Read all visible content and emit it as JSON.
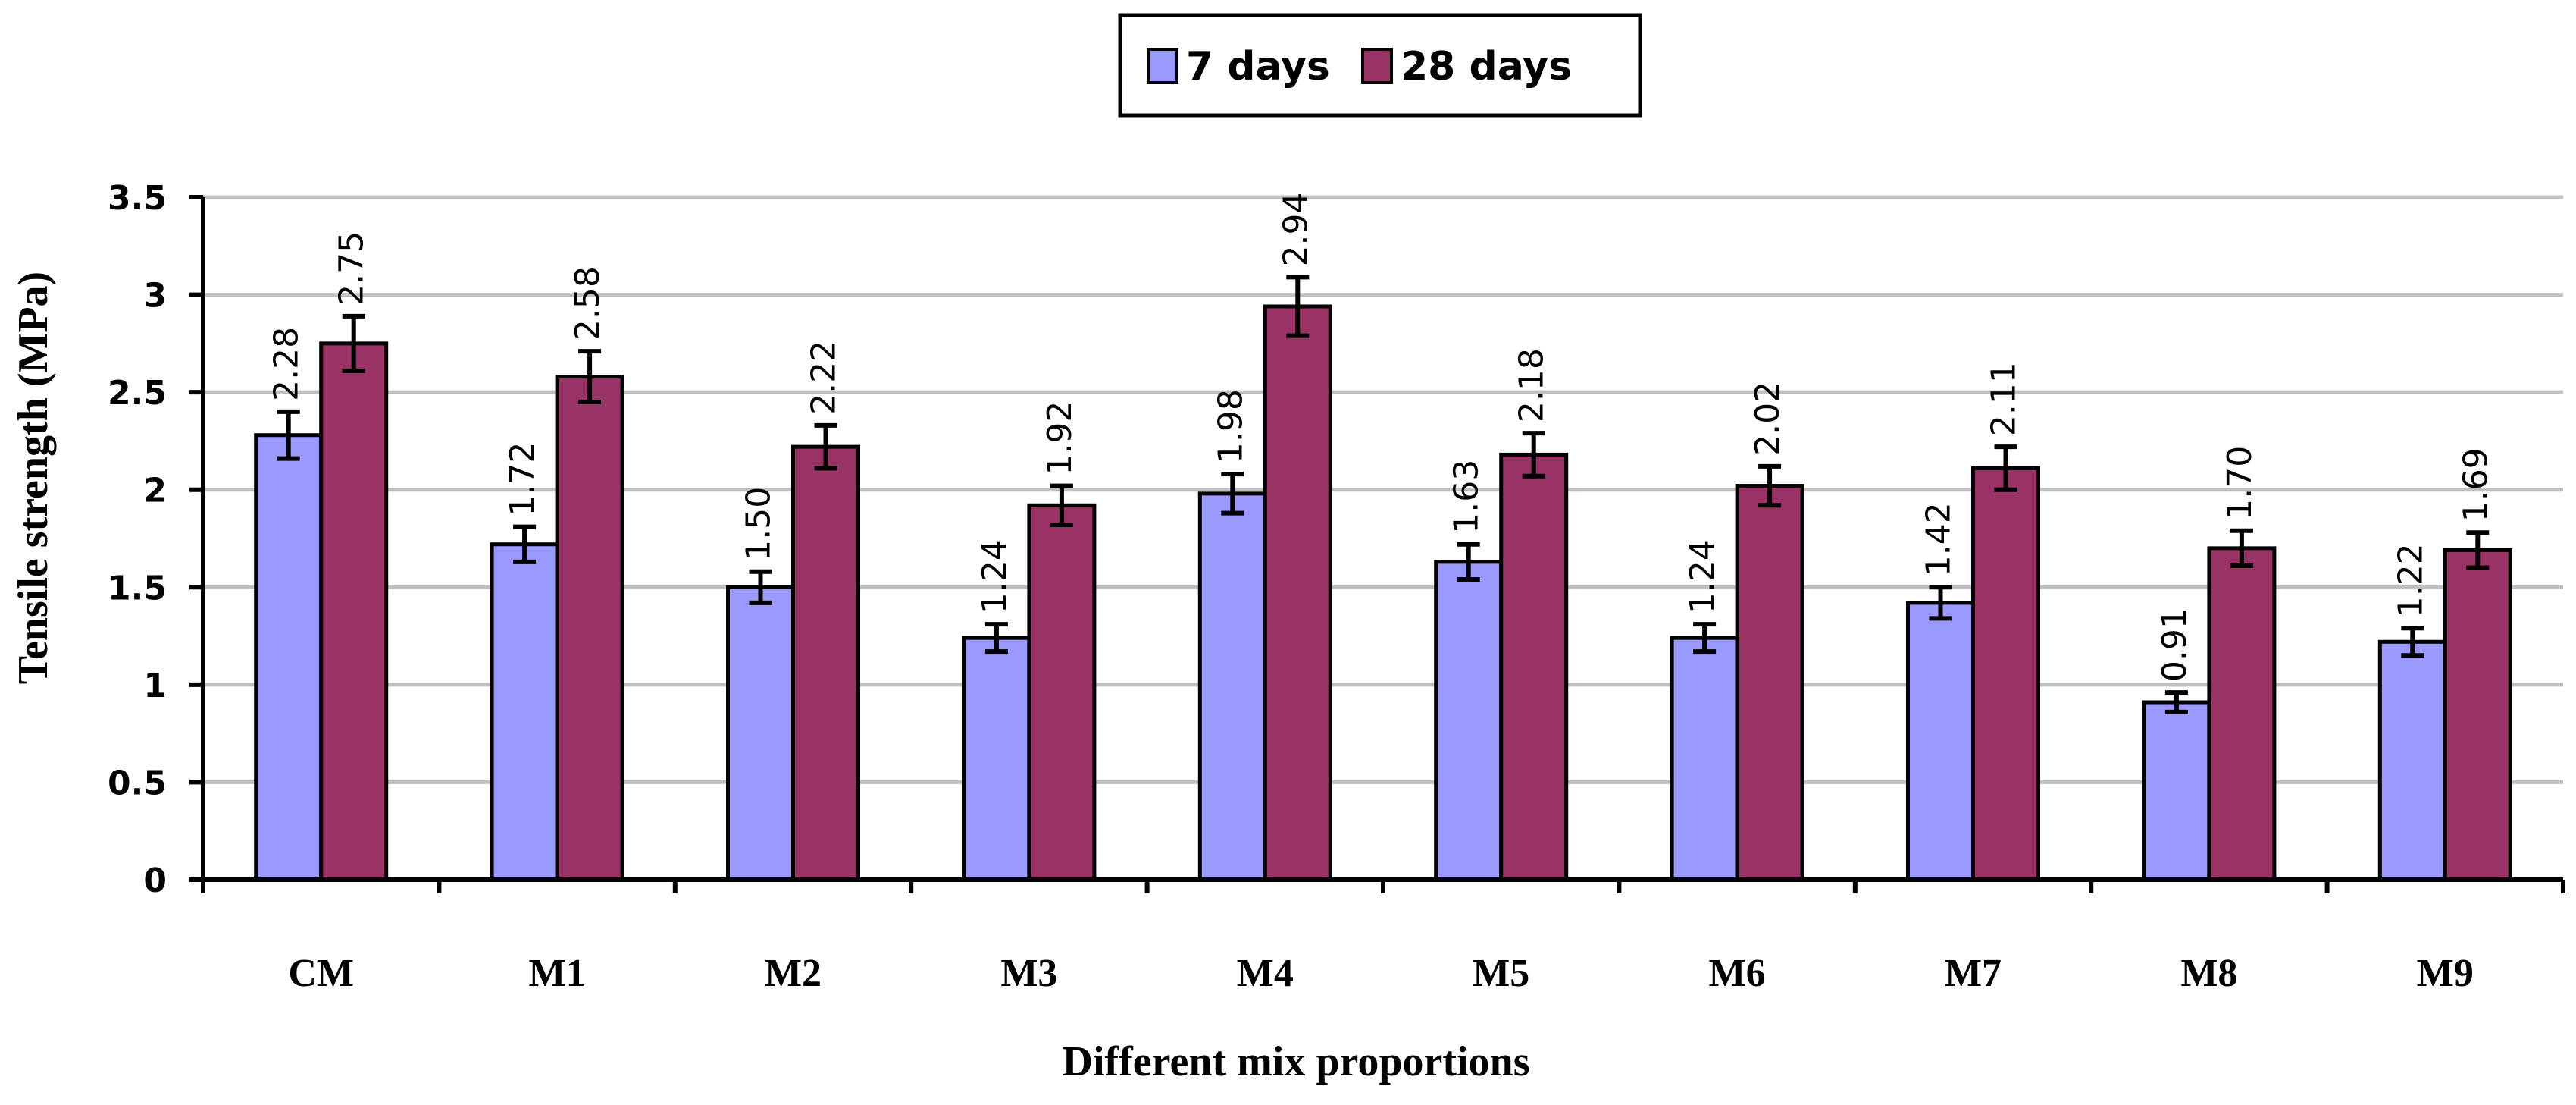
{
  "chart_data": {
    "type": "bar",
    "categories": [
      "CM",
      "M1",
      "M2",
      "M3",
      "M4",
      "M5",
      "M6",
      "M7",
      "M8",
      "M9"
    ],
    "series": [
      {
        "name": "7 days",
        "values": [
          2.28,
          1.72,
          1.5,
          1.24,
          1.98,
          1.63,
          1.24,
          1.42,
          0.91,
          1.22
        ],
        "labels": [
          "2.28",
          "1.72",
          "1.50",
          "1.24",
          "1.98",
          "1.63",
          "1.24",
          "1.42",
          "0.91",
          "1.22"
        ],
        "errors": [
          0.12,
          0.09,
          0.08,
          0.07,
          0.1,
          0.09,
          0.07,
          0.08,
          0.05,
          0.07
        ],
        "color": "#9999ff"
      },
      {
        "name": "28 days",
        "values": [
          2.75,
          2.58,
          2.22,
          1.92,
          2.94,
          2.18,
          2.02,
          2.11,
          1.7,
          1.69
        ],
        "labels": [
          "2.75",
          "2.58",
          "2.22",
          "1.92",
          "2.94",
          "2.18",
          "2.02",
          "2.11",
          "1.70",
          "1.69"
        ],
        "errors": [
          0.14,
          0.13,
          0.11,
          0.1,
          0.15,
          0.11,
          0.1,
          0.11,
          0.09,
          0.09
        ],
        "color": "#993366"
      }
    ],
    "title": "",
    "xlabel": "Different mix proportions",
    "ylabel": "Tensile strength (MPa)",
    "ylim": [
      0,
      3.5
    ],
    "yticks": [
      0,
      0.5,
      1,
      1.5,
      2,
      2.5,
      3,
      3.5
    ],
    "ytick_labels": [
      "0",
      "0.5",
      "1",
      "1.5",
      "2",
      "2.5",
      "3",
      "3.5"
    ],
    "grid": "horizontal",
    "legend_position": "top-center",
    "gridline_color": "#c0c0c0"
  }
}
